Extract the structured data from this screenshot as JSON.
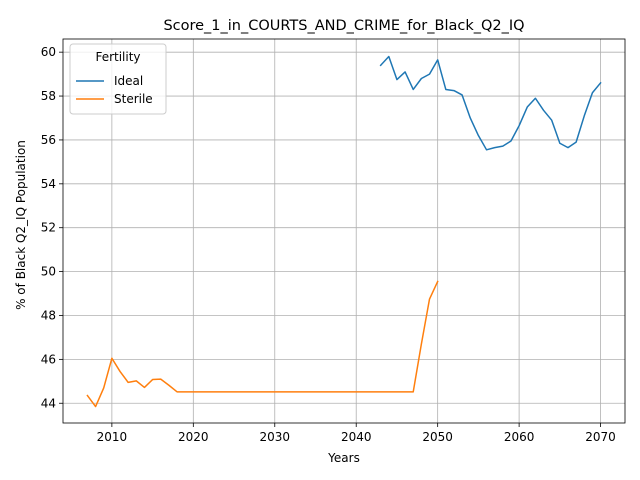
{
  "chart_data": {
    "type": "line",
    "title": "Score_1_in_COURTS_AND_CRIME_for_Black_Q2_IQ",
    "xlabel": "Years",
    "ylabel": "% of Black Q2_IQ Population",
    "xlim": [
      2004,
      2073
    ],
    "ylim": [
      43.1,
      60.6
    ],
    "xticks": [
      2010,
      2020,
      2030,
      2040,
      2050,
      2060,
      2070
    ],
    "yticks": [
      44,
      46,
      48,
      50,
      52,
      54,
      56,
      58,
      60
    ],
    "grid": true,
    "legend": {
      "title": "Fertility",
      "placement": "top-left"
    },
    "series": [
      {
        "name": "Ideal",
        "color": "#1f77b4",
        "x": [
          2043,
          2044,
          2045,
          2046,
          2047,
          2048,
          2049,
          2050,
          2051,
          2052,
          2053,
          2054,
          2055,
          2056,
          2057,
          2058,
          2059,
          2060,
          2061,
          2062,
          2063,
          2064,
          2065,
          2066,
          2067,
          2068,
          2069,
          2070
        ],
        "y": [
          59.4,
          59.8,
          58.75,
          59.1,
          58.3,
          58.8,
          59.0,
          59.65,
          58.3,
          58.25,
          58.05,
          57.0,
          56.2,
          55.55,
          55.65,
          55.72,
          55.95,
          56.65,
          57.5,
          57.9,
          57.35,
          56.9,
          55.85,
          55.65,
          55.9,
          57.1,
          58.15,
          58.6
        ]
      },
      {
        "name": "Sterile",
        "color": "#ff7f0e",
        "x": [
          2007,
          2008,
          2009,
          2010,
          2011,
          2012,
          2013,
          2014,
          2015,
          2016,
          2017,
          2018,
          2019,
          2020,
          2025,
          2030,
          2035,
          2040,
          2045,
          2047,
          2048,
          2049,
          2050
        ],
        "y": [
          44.35,
          43.85,
          44.7,
          46.05,
          45.45,
          44.95,
          45.02,
          44.72,
          45.08,
          45.1,
          44.82,
          44.52,
          44.52,
          44.52,
          44.52,
          44.52,
          44.52,
          44.52,
          44.52,
          44.52,
          46.7,
          48.75,
          49.55
        ]
      }
    ]
  }
}
